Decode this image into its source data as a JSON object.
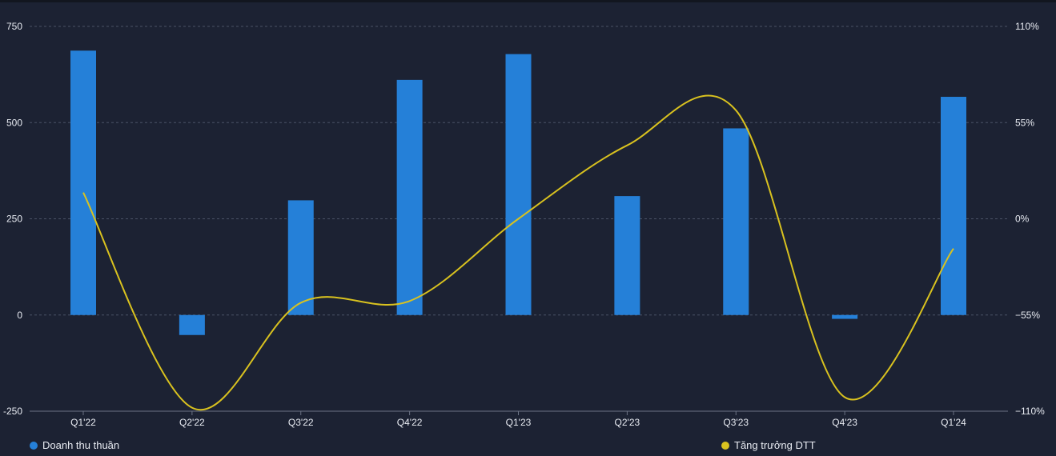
{
  "chart_data": {
    "type": "bar+line",
    "categories": [
      "Q1'22",
      "Q2'22",
      "Q3'22",
      "Q4'22",
      "Q1'23",
      "Q2'23",
      "Q3'23",
      "Q4'23",
      "Q1'24"
    ],
    "series": [
      {
        "name": "Doanh thu thuần",
        "type": "bar",
        "axis": "left",
        "color": "#2580d8",
        "values": [
          687,
          -52,
          298,
          611,
          678,
          309,
          485,
          -10,
          567
        ]
      },
      {
        "name": "Tăng trưởng DTT",
        "type": "line",
        "axis": "right",
        "color": "#d9c21f",
        "values": [
          15,
          -108,
          -48,
          -47,
          0,
          42,
          62,
          -102,
          -17
        ]
      }
    ],
    "y_left": {
      "min": -250,
      "max": 750,
      "ticks": [
        750,
        500,
        250,
        0,
        -250
      ],
      "tick_labels": [
        "750",
        "500",
        "250",
        "0",
        "-250"
      ]
    },
    "y_right": {
      "min": -110,
      "max": 110,
      "ticks": [
        110,
        55,
        0,
        -55,
        -110
      ],
      "tick_labels": [
        "110%",
        "55%",
        "0%",
        "−55%",
        "−110%"
      ]
    },
    "grid": true,
    "legend": {
      "placement": "bottom"
    },
    "colors": {
      "background": "#1c2233",
      "grid": "#4a5266",
      "text": "#e8ebf2"
    }
  }
}
